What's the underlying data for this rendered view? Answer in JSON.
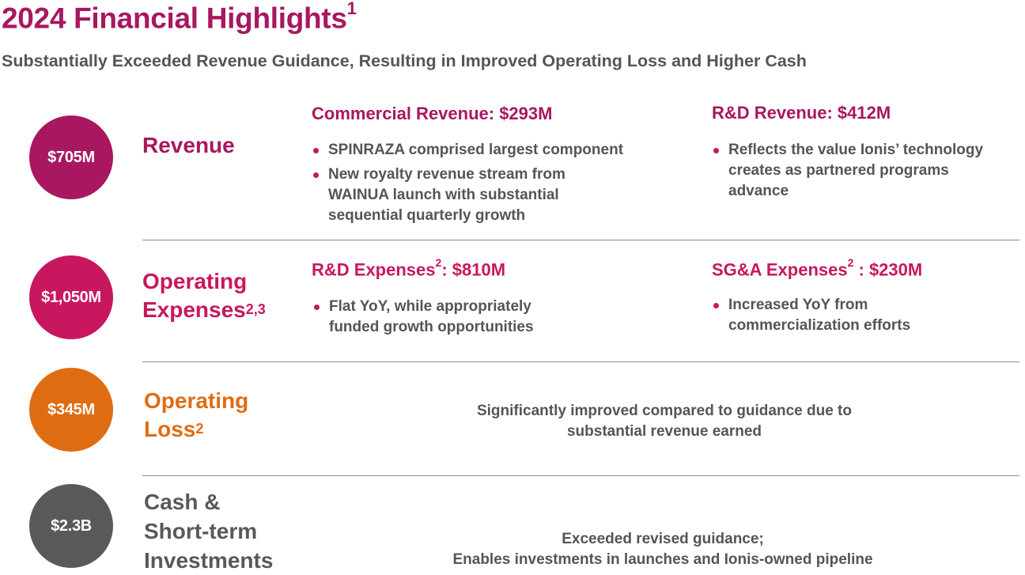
{
  "header": {
    "title": "2024 Financial Highlights",
    "title_sup": "1",
    "subtitle": "Substantially Exceeded Revenue Guidance, Resulting in Improved Operating Loss and Higher Cash"
  },
  "colors": {
    "revenue": "#a8175f",
    "operating_expenses": "#c8175f",
    "operating_loss": "#e06c12",
    "cash": "#58595b",
    "body_text": "#555555"
  },
  "rows": {
    "revenue": {
      "value": "$705M",
      "label": "Revenue",
      "commercial": {
        "heading": "Commercial Revenue: $293M",
        "bullets": [
          "SPINRAZA comprised largest component",
          "New royalty revenue stream from\nWAINUA launch with substantial\nsequential quarterly growth"
        ]
      },
      "rd": {
        "heading": "R&D Revenue: $412M",
        "bullets": [
          "Reflects the value Ionis’ technology\ncreates as partnered programs\nadvance"
        ]
      }
    },
    "operating_expenses": {
      "value": "$1,050M",
      "label_line1": "Operating",
      "label_line2": "Expenses",
      "label_sup": "2,3",
      "rd": {
        "heading_prefix": "R&D Expenses",
        "heading_sup": "2",
        "heading_suffix": ": $810M",
        "bullets": [
          "Flat YoY, while appropriately\nfunded growth opportunities"
        ]
      },
      "sga": {
        "heading_prefix": "SG&A Expenses",
        "heading_sup": "2",
        "heading_suffix": " : $230M",
        "bullets": [
          "Increased YoY from\ncommercialization efforts"
        ]
      }
    },
    "operating_loss": {
      "value": "$345M",
      "label_line1": "Operating",
      "label_line2": "Loss",
      "label_sup": "2",
      "text_line1": "Significantly improved compared to guidance due to",
      "text_line2": "substantial revenue earned"
    },
    "cash": {
      "value": "$2.3B",
      "label_line1": "Cash &",
      "label_line2": "Short-term",
      "label_line3": "Investments",
      "text_line1": "Exceeded revised guidance;",
      "text_line2": "Enables investments in launches and Ionis-owned pipeline"
    }
  }
}
